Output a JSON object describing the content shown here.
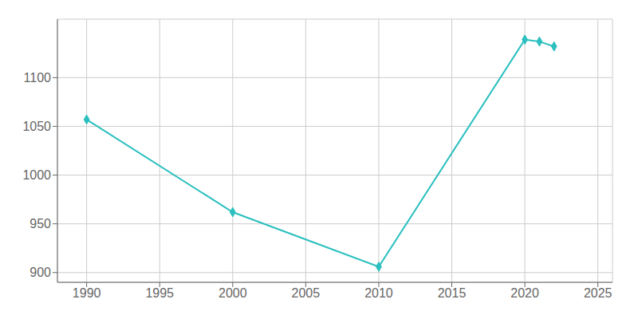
{
  "chart_data": {
    "type": "line",
    "x": [
      1990,
      2000,
      2010,
      2020,
      2021,
      2022
    ],
    "values": [
      1057,
      962,
      906,
      1139,
      1137,
      1132
    ],
    "color": "#2bbfbf",
    "marker": "diamond",
    "xlim": [
      1988,
      2026
    ],
    "ylim": [
      890,
      1160
    ],
    "xticks": [
      1990,
      1995,
      2000,
      2005,
      2010,
      2015,
      2020,
      2025
    ],
    "yticks": [
      900,
      950,
      1000,
      1050,
      1100
    ],
    "grid": true
  }
}
